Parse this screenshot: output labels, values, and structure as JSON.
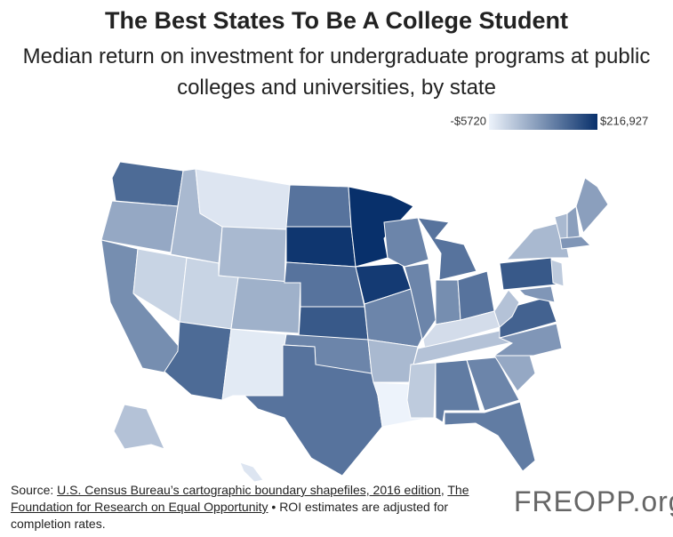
{
  "chart_data": {
    "type": "choropleth",
    "title": "The Best States To Be A College Student",
    "subtitle": "Median return on investment for undergraduate programs at public colleges and universities, by state",
    "colorscale": [
      "#edf3fb",
      "#08306b"
    ],
    "clim": [
      -5720,
      216927
    ],
    "cticks": [
      {
        "value": -5720,
        "label": "-$5720"
      },
      {
        "value": 216927,
        "label": "$216,927"
      }
    ],
    "values": [
      150000,
      80000,
      110000,
      30000,
      60000,
      10000,
      60000,
      30000,
      70000,
      150000,
      5000,
      140000,
      210000,
      140000,
      170000,
      120000,
      140000,
      216927,
      205000,
      120000,
      60000,
      -5720,
      120000,
      120000,
      140000,
      110000,
      140000,
      20000,
      50000,
      40000,
      130000,
      120000,
      130000,
      80000,
      100000,
      160000,
      50000,
      170000,
      60000,
      60000,
      90000,
      90000,
      100000,
      40000,
      100000,
      50000,
      10000
    ]
  },
  "source": [
    "Source: ",
    "U.S. Census Bureau’s cartographic boundary shapefiles, 2016 edition",
    ", ",
    "The Foundation for Research on Equal Opportunity",
    " • ROI estimates are adjusted for completion rates."
  ],
  "logo": "FREOPP.org"
}
